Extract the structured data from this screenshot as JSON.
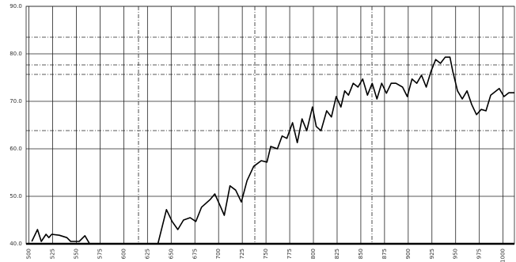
{
  "chart_data": {
    "type": "line",
    "x": [
      503,
      509,
      513,
      518,
      521,
      524,
      532,
      540,
      544,
      553,
      559,
      564,
      636,
      645,
      651,
      657,
      663,
      670,
      676,
      682,
      691,
      696,
      701,
      706,
      712,
      718,
      724,
      730,
      737,
      745,
      751,
      755,
      762,
      767,
      772,
      778,
      783,
      788,
      793,
      799,
      803,
      808,
      814,
      819,
      824,
      829,
      833,
      837,
      842,
      847,
      852,
      857,
      862,
      867,
      872,
      877,
      882,
      887,
      894,
      899,
      904,
      909,
      914,
      919,
      924,
      929,
      934,
      939,
      944,
      947,
      952,
      957,
      962,
      967,
      972,
      977,
      982,
      987,
      996,
      1001,
      1006,
      1012
    ],
    "series": [
      {
        "color": "#000000",
        "values": [
          40.5,
          43,
          40.5,
          42,
          41.3,
          42,
          41.8,
          41.3,
          40.5,
          40.5,
          41.7,
          40,
          40,
          47.2,
          44.7,
          43,
          45,
          45.5,
          44.7,
          47.7,
          49.3,
          50.5,
          48.3,
          46,
          52.2,
          51.3,
          48.8,
          53.3,
          56.3,
          57.5,
          57.2,
          60.5,
          60,
          62.7,
          62.2,
          65.5,
          61.3,
          66.3,
          63.8,
          68.8,
          64.7,
          63.8,
          68,
          66.7,
          71,
          68.8,
          72.2,
          71.3,
          73.8,
          73,
          74.7,
          71.3,
          73.8,
          70.5,
          73.8,
          71.7,
          73.8,
          73.8,
          73,
          71,
          74.7,
          73.8,
          75.5,
          73,
          76.3,
          78.8,
          78,
          79.3,
          79.3,
          76.3,
          72.2,
          70.5,
          72.2,
          69.3,
          67.2,
          68.3,
          68,
          71.3,
          72.7,
          71,
          71.8,
          71.8
        ]
      }
    ],
    "xlim": [
      497,
      1012
    ],
    "xticks": [
      500,
      525,
      550,
      575,
      600,
      625,
      650,
      675,
      700,
      725,
      750,
      775,
      800,
      825,
      850,
      875,
      900,
      925,
      950,
      975,
      1000
    ],
    "ylim": [
      40,
      90
    ],
    "yticks": [
      {
        "value": 40,
        "label": "40.0"
      },
      {
        "value": 50,
        "label": "50.0"
      },
      {
        "value": 60,
        "label": "60.0"
      },
      {
        "value": 70,
        "label": "70.0"
      },
      {
        "value": 80,
        "label": "80.0"
      },
      {
        "value": 90,
        "label": "90.0"
      }
    ],
    "grid": true
  }
}
